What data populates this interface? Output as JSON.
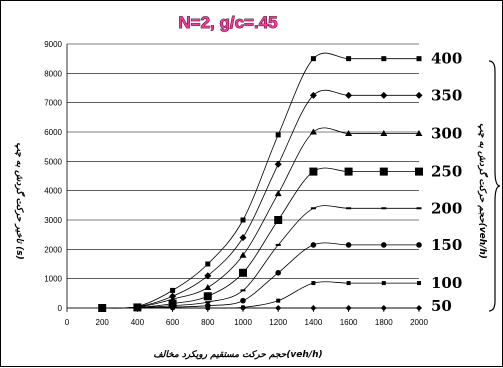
{
  "chart_data": {
    "type": "line",
    "title": "N=2, g/c=.45",
    "xlabel": "حجم حرکت مستقیم رویکرد مخالف(veh/h)",
    "ylabel": "تاخیر حرکت گردش به چپ (s)",
    "right_axis_label": "حجم حرکت گردش به چپ(veh/h)",
    "xlim": [
      0,
      2000
    ],
    "ylim": [
      0,
      9000
    ],
    "x_ticks": [
      0,
      200,
      400,
      600,
      800,
      1000,
      1200,
      1400,
      1600,
      1800,
      2000
    ],
    "y_ticks": [
      0,
      1000,
      2000,
      3000,
      4000,
      5000,
      6000,
      7000,
      8000,
      9000
    ],
    "grid": "horizontal",
    "x": [
      200,
      400,
      600,
      800,
      1000,
      1200,
      1400,
      1600,
      1800,
      2000
    ],
    "series": [
      {
        "name": "400",
        "marker": "square",
        "values": [
          0,
          50,
          600,
          1500,
          3000,
          5900,
          8500,
          8500,
          8500,
          8500
        ]
      },
      {
        "name": "350",
        "marker": "diamond",
        "values": [
          0,
          40,
          400,
          1100,
          2400,
          4900,
          7250,
          7250,
          7250,
          7250
        ]
      },
      {
        "name": "300",
        "marker": "triangle",
        "values": [
          0,
          30,
          300,
          700,
          1800,
          3900,
          6000,
          5950,
          5950,
          5950
        ]
      },
      {
        "name": "250",
        "marker": "big-square",
        "values": [
          0,
          20,
          150,
          400,
          1200,
          3000,
          4650,
          4650,
          4650,
          4650
        ]
      },
      {
        "name": "200",
        "marker": "dash",
        "values": [
          0,
          10,
          80,
          200,
          600,
          2150,
          3400,
          3400,
          3400,
          3400
        ]
      },
      {
        "name": "150",
        "marker": "circle",
        "values": [
          0,
          5,
          30,
          80,
          250,
          1200,
          2150,
          2150,
          2150,
          2150
        ]
      },
      {
        "name": "100",
        "marker": "small-square",
        "values": [
          0,
          0,
          0,
          0,
          20,
          250,
          850,
          850,
          850,
          850
        ]
      },
      {
        "name": "50",
        "marker": "small-diamond",
        "values": [
          0,
          0,
          0,
          0,
          0,
          0,
          0,
          0,
          0,
          0
        ]
      }
    ]
  }
}
